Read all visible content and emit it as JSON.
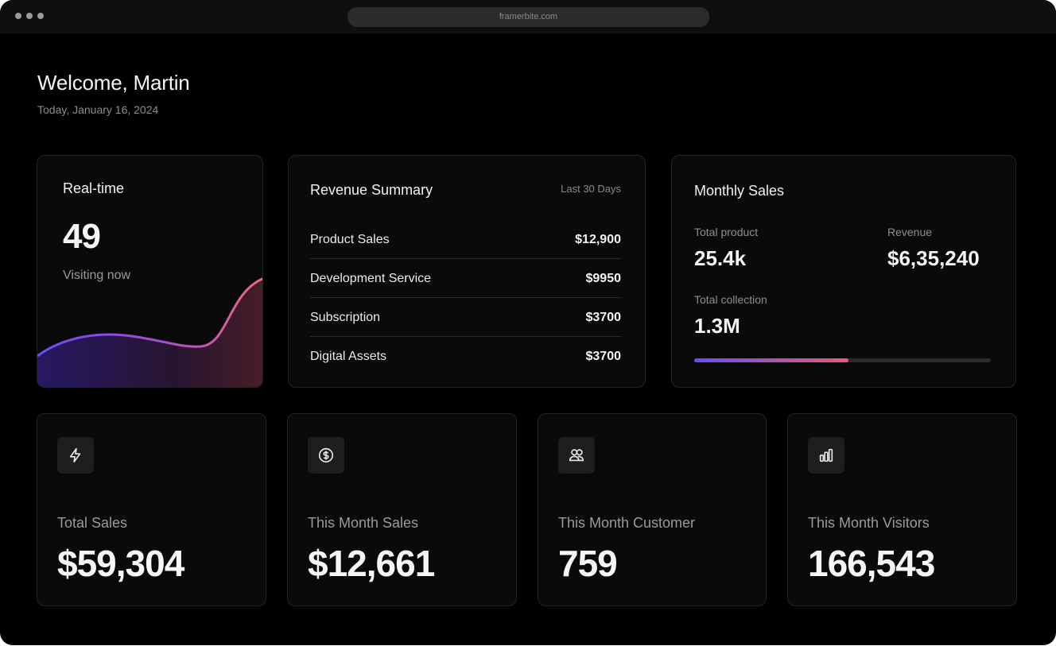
{
  "browser": {
    "url": "framerbite.com"
  },
  "header": {
    "welcome": "Welcome, Martin",
    "date": "Today, January 16, 2024"
  },
  "realtime": {
    "title": "Real-time",
    "value": "49",
    "subtitle": "Visiting now"
  },
  "revenue_summary": {
    "title": "Revenue Summary",
    "period": "Last 30 Days",
    "rows": [
      {
        "label": "Product Sales",
        "value": "$12,900"
      },
      {
        "label": "Development Service",
        "value": "$9950"
      },
      {
        "label": "Subscription",
        "value": "$3700"
      },
      {
        "label": "Digital Assets",
        "value": "$3700"
      }
    ]
  },
  "monthly_sales": {
    "title": "Monthly Sales",
    "total_product_label": "Total product",
    "total_product_value": "25.4k",
    "revenue_label": "Revenue",
    "revenue_value": "$6,35,240",
    "total_collection_label": "Total collection",
    "total_collection_value": "1.3M",
    "progress": 0.52
  },
  "stats": [
    {
      "icon": "bolt-icon",
      "label": "Total Sales",
      "value": "$59,304"
    },
    {
      "icon": "dollar-coin-icon",
      "label": "This Month Sales",
      "value": "$12,661"
    },
    {
      "icon": "users-icon",
      "label": "This Month Customer",
      "value": "759"
    },
    {
      "icon": "bar-chart-icon",
      "label": "This Month Visitors",
      "value": "166,543"
    }
  ],
  "colors": {
    "background": "#000000",
    "card": "#0a0a0a",
    "accent_start": "#6b4cf5",
    "accent_end": "#e85a7a"
  }
}
